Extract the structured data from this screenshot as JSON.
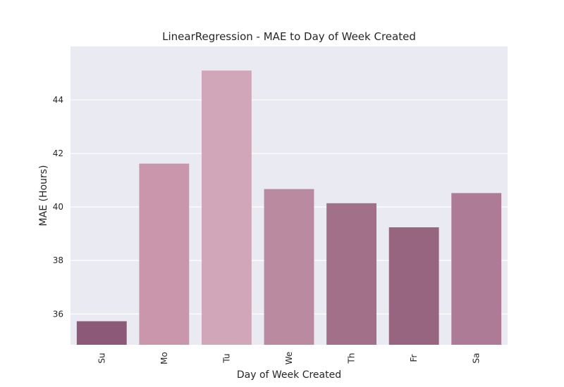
{
  "chart_data": {
    "type": "bar",
    "title": "LinearRegression - MAE to Day of Week Created",
    "xlabel": "Day of Week Created",
    "ylabel": "MAE (Hours)",
    "categories": [
      "Su",
      "Mo",
      "Tu",
      "We",
      "Th",
      "Fr",
      "Sa"
    ],
    "values": [
      35.73,
      41.62,
      45.1,
      40.67,
      40.14,
      39.24,
      40.52
    ],
    "ylim": [
      34.85,
      46.0
    ],
    "yticks": [
      36,
      38,
      40,
      42,
      44
    ],
    "grid": true,
    "legend": "none",
    "colors": {
      "background": "#eaeaf2",
      "bars": [
        "#8c5a78",
        "#c996ac",
        "#d2a6b9",
        "#b98aa0",
        "#a27089",
        "#97657f",
        "#ae7b96"
      ]
    }
  }
}
